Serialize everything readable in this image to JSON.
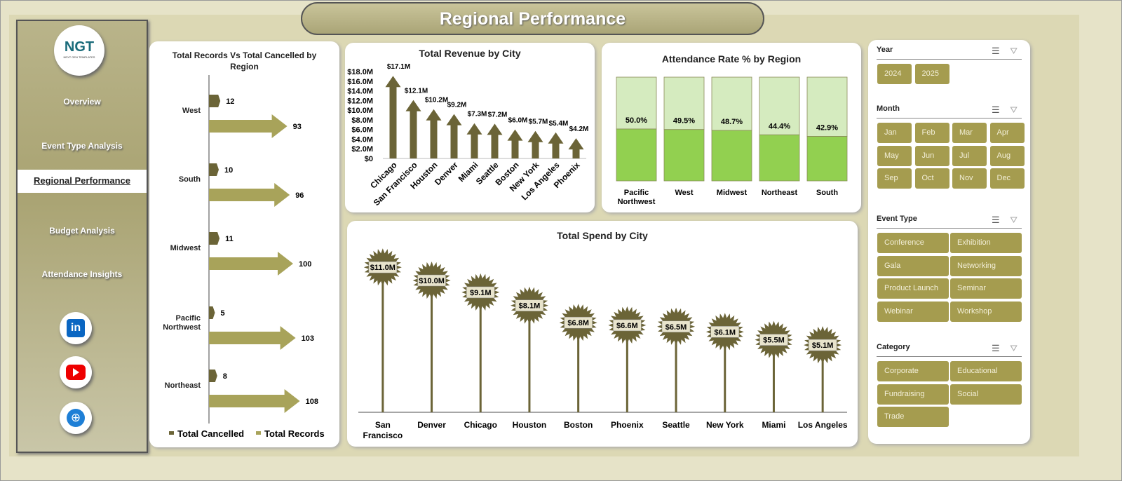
{
  "title": "Regional Performance",
  "logo": {
    "text": "NGT",
    "sub": "NEXT GEN TEMPLATES"
  },
  "nav": [
    {
      "label": "Overview"
    },
    {
      "label": "Event Type Analysis"
    },
    {
      "label": "Regional Performance",
      "active": true
    },
    {
      "label": "Budget Analysis"
    },
    {
      "label": "Attendance Insights"
    }
  ],
  "social": [
    {
      "icon": "linkedin-icon",
      "label": "in"
    },
    {
      "icon": "youtube-icon"
    },
    {
      "icon": "globe-icon"
    }
  ],
  "colors": {
    "accent": "#a59c4f",
    "dark": "#6b6437",
    "arrow": "#a8a35a",
    "green": "#92d050",
    "light_green": "#d5ebbf"
  },
  "chart_data": [
    {
      "type": "bar",
      "orientation": "horizontal",
      "title": "Total Records Vs Total Cancelled by Region",
      "categories": [
        "West",
        "South",
        "Midwest",
        "Pacific Northwest",
        "Northeast"
      ],
      "series": [
        {
          "name": "Total Cancelled",
          "values": [
            12,
            10,
            11,
            5,
            8
          ]
        },
        {
          "name": "Total Records",
          "values": [
            93,
            96,
            100,
            103,
            108
          ]
        }
      ],
      "legend": "bottom"
    },
    {
      "type": "bar",
      "title": "Total Revenue  by City",
      "categories": [
        "Chicago",
        "San Francisco",
        "Houston",
        "Denver",
        "Miami",
        "Seattle",
        "Boston",
        "New York",
        "Los Angeles",
        "Phoenix"
      ],
      "values": [
        17.1,
        12.1,
        10.2,
        9.2,
        7.3,
        7.2,
        6.0,
        5.7,
        5.4,
        4.2
      ],
      "labels": [
        "$17.1M",
        "$12.1M",
        "$10.2M",
        "$9.2M",
        "$7.3M",
        "$7.2M",
        "$6.0M",
        "$5.7M",
        "$5.4M",
        "$4.2M"
      ],
      "ylim": [
        0,
        18
      ],
      "yticks": [
        "$0",
        "$2.0M",
        "$4.0M",
        "$6.0M",
        "$8.0M",
        "$10.0M",
        "$12.0M",
        "$14.0M",
        "$16.0M",
        "$18.0M"
      ]
    },
    {
      "type": "bar",
      "stacked": "100%",
      "title": "Attendance Rate % by Region",
      "categories": [
        "Pacific Northwest",
        "West",
        "Midwest",
        "Northeast",
        "South"
      ],
      "values": [
        50.0,
        49.5,
        48.7,
        44.4,
        42.9
      ],
      "labels": [
        "50.0%",
        "49.5%",
        "48.7%",
        "44.4%",
        "42.9%"
      ]
    },
    {
      "type": "lollipop",
      "title": "Total Spend by City",
      "categories": [
        "San Francisco",
        "Denver",
        "Chicago",
        "Houston",
        "Boston",
        "Phoenix",
        "Seattle",
        "New York",
        "Miami",
        "Los Angeles"
      ],
      "values": [
        11.0,
        10.0,
        9.1,
        8.1,
        6.8,
        6.6,
        6.5,
        6.1,
        5.5,
        5.1
      ],
      "labels": [
        "$11.0M",
        "$10.0M",
        "$9.1M",
        "$8.1M",
        "$6.8M",
        "$6.6M",
        "$6.5M",
        "$6.1M",
        "$5.5M",
        "$5.1M"
      ]
    }
  ],
  "slicers": [
    {
      "title": "Year",
      "items": [
        "2024",
        "2025"
      ]
    },
    {
      "title": "Month",
      "items": [
        "Jan",
        "Feb",
        "Mar",
        "Apr",
        "May",
        "Jun",
        "Jul",
        "Aug",
        "Sep",
        "Oct",
        "Nov",
        "Dec"
      ]
    },
    {
      "title": "Event Type",
      "items": [
        "Conference",
        "Exhibition",
        "Gala",
        "Networking",
        "Product Launch",
        "Seminar",
        "Webinar",
        "Workshop"
      ]
    },
    {
      "title": "Category",
      "items": [
        "Corporate",
        "Educational",
        "Fundraising",
        "Social",
        "Trade"
      ]
    }
  ]
}
